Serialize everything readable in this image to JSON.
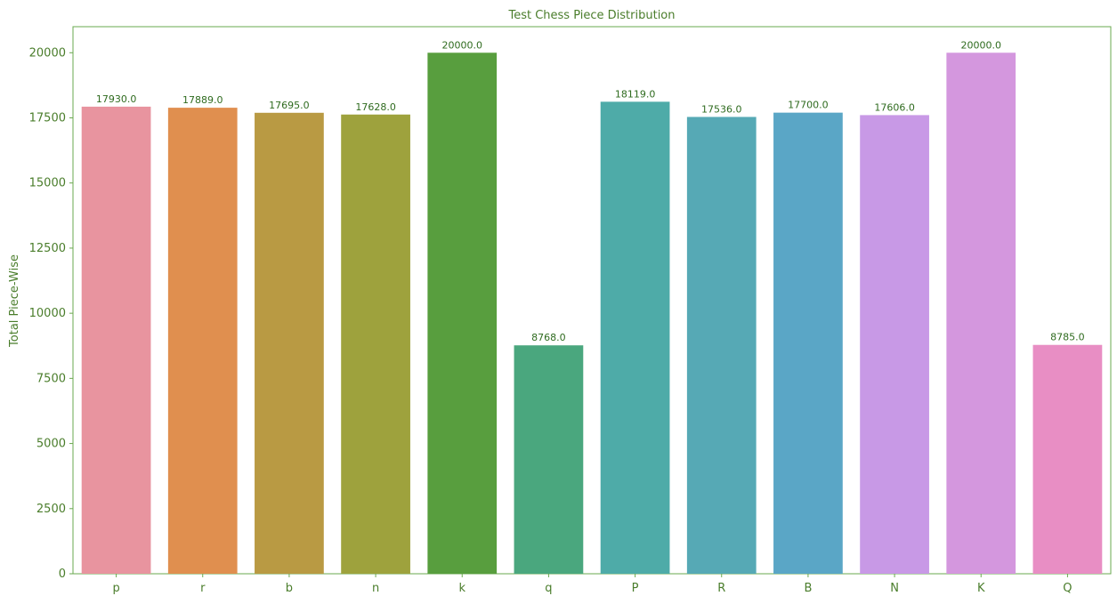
{
  "chart_data": {
    "type": "bar",
    "title": "Test Chess Piece Distribution",
    "xlabel": "",
    "ylabel": "Total Piece-Wise",
    "categories": [
      "p",
      "r",
      "b",
      "n",
      "k",
      "q",
      "P",
      "R",
      "B",
      "N",
      "K",
      "Q"
    ],
    "values": [
      17930,
      17889,
      17695,
      17628,
      20000,
      8768,
      18119,
      17536,
      17700,
      17606,
      20000,
      8785
    ],
    "value_labels": [
      "17930.0",
      "17889.0",
      "17695.0",
      "17628.0",
      "20000.0",
      "8768.0",
      "18119.0",
      "17536.0",
      "17700.0",
      "17606.0",
      "20000.0",
      "8785.0"
    ],
    "colors": [
      "#e8949f",
      "#e08f4f",
      "#b99a43",
      "#9ea23d",
      "#589e3e",
      "#4aa77e",
      "#4eaba8",
      "#56a9b5",
      "#5aa6c6",
      "#c899e6",
      "#d497de",
      "#e88ec4"
    ],
    "ylim": [
      0,
      21000
    ],
    "yticks": [
      0,
      2500,
      5000,
      7500,
      10000,
      12500,
      15000,
      17500,
      20000
    ],
    "ytick_labels": [
      "0",
      "2500",
      "5000",
      "7500",
      "10000",
      "12500",
      "15000",
      "17500",
      "20000"
    ],
    "grid": false,
    "legend": "none",
    "text_color": "#4a7d2b",
    "label_color": "#2f6b1f",
    "axis_color": "#6aa84f"
  }
}
